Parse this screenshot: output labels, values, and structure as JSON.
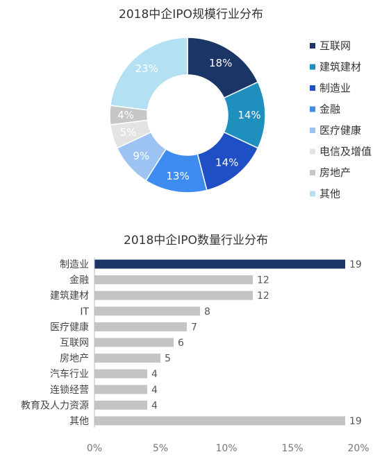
{
  "chart_data": [
    {
      "type": "pie",
      "title": "2018中企IPO规模行业分布",
      "slices": [
        {
          "label": "互联网",
          "value": 18,
          "display": "18%",
          "color": "#1a3566"
        },
        {
          "label": "建筑建材",
          "value": 14,
          "display": "14%",
          "color": "#1f8fbe"
        },
        {
          "label": "制造业",
          "value": 14,
          "display": "14%",
          "color": "#1f4fc4"
        },
        {
          "label": "金融",
          "value": 13,
          "display": "13%",
          "color": "#3f8cf0"
        },
        {
          "label": "医疗健康",
          "value": 9,
          "display": "9%",
          "color": "#9cc3f2"
        },
        {
          "label": "电信及增值",
          "value": 5,
          "display": "5%",
          "color": "#e3e3e3"
        },
        {
          "label": "房地产",
          "value": 4,
          "display": "4%",
          "color": "#c6c6c6"
        },
        {
          "label": "其他",
          "value": 23,
          "display": "23%",
          "color": "#b3e0f2"
        }
      ],
      "legend_position": "right"
    },
    {
      "type": "bar",
      "orientation": "horizontal",
      "title": "2018中企IPO数量行业分布",
      "categories": [
        "制造业",
        "金融",
        "建筑建材",
        "IT",
        "医疗健康",
        "互联网",
        "房地产",
        "汽车行业",
        "连锁经营",
        "教育及人力资源",
        "其他"
      ],
      "values": [
        19,
        12,
        12,
        8,
        7,
        6,
        5,
        4,
        4,
        4,
        19
      ],
      "value_axis_ticks": [
        "0%",
        "5%",
        "10%",
        "15%",
        "20%"
      ],
      "xlim": [
        0,
        20
      ],
      "highlight_color": "#1a3566",
      "bar_color": "#c4c4c4",
      "highlight_index": 0,
      "grid": false
    }
  ]
}
